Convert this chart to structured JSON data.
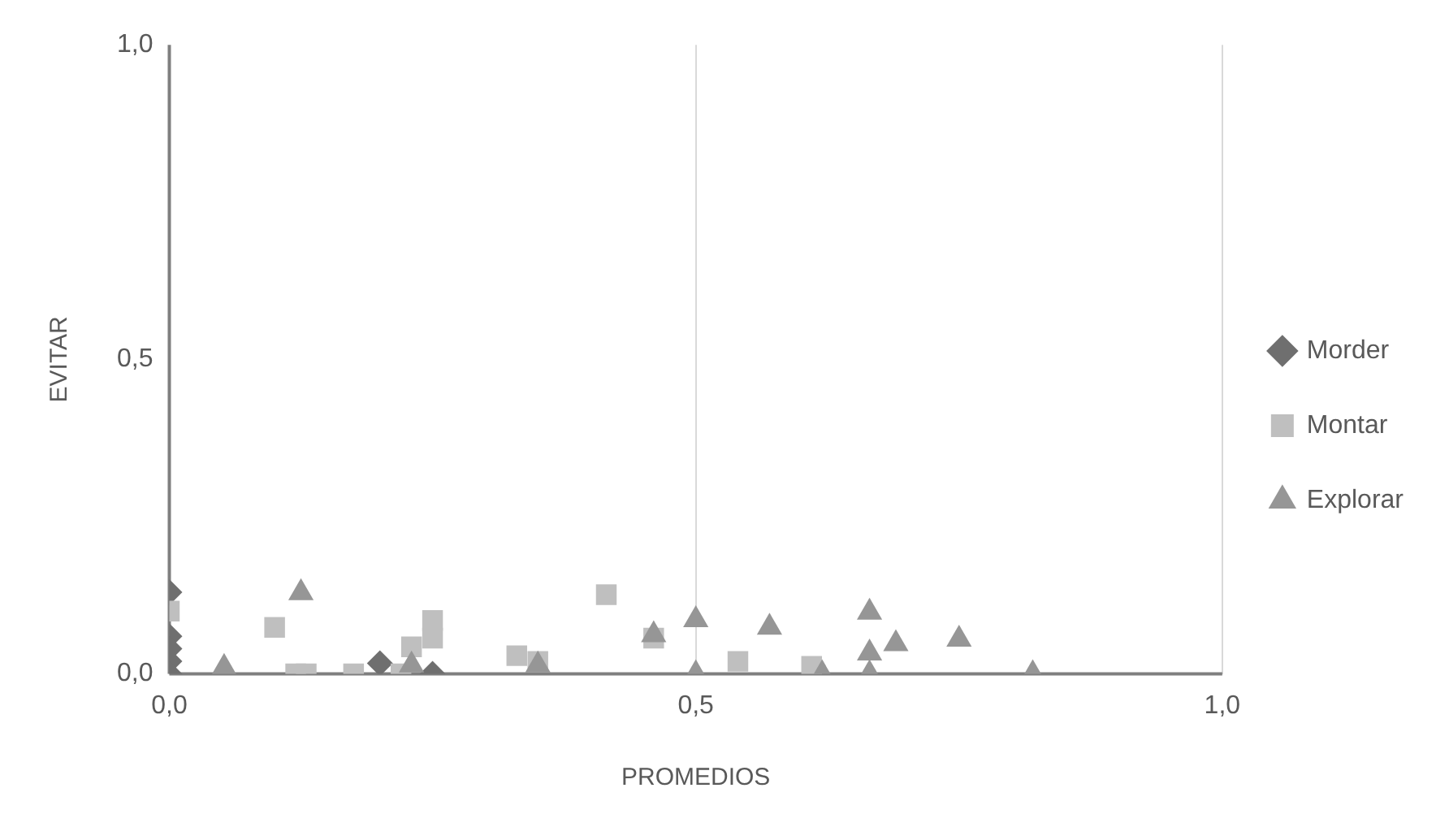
{
  "chart_data": {
    "type": "scatter",
    "xlabel": "PROMEDIOS",
    "ylabel": "EVITAR",
    "xlim": [
      0,
      1
    ],
    "ylim": [
      0,
      1
    ],
    "xticks": [
      {
        "value": 0,
        "label": "0,0"
      },
      {
        "value": 0.5,
        "label": "0,5"
      },
      {
        "value": 1,
        "label": "1,0"
      }
    ],
    "yticks": [
      {
        "value": 0,
        "label": "0,0"
      },
      {
        "value": 0.5,
        "label": "0,5"
      },
      {
        "value": 1,
        "label": "1,0"
      }
    ],
    "grid": "x",
    "legend": "right",
    "series": [
      {
        "name": "Morder",
        "color": "#6f6f6f",
        "marker": "diamond",
        "x": [
          0,
          0,
          0,
          0,
          0,
          0.2,
          0.25
        ],
        "values": [
          0.13,
          0.06,
          0.04,
          0.02,
          0,
          0.017,
          0
        ]
      },
      {
        "name": "Montar",
        "color": "#bfbfbf",
        "marker": "square",
        "x": [
          0,
          0.1,
          0.12,
          0.13,
          0.175,
          0.22,
          0.23,
          0.25,
          0.25,
          0.33,
          0.35,
          0.415,
          0.46,
          0.54,
          0.61
        ],
        "values": [
          0.1,
          0.074,
          0,
          0,
          0,
          0,
          0.043,
          0.085,
          0.057,
          0.029,
          0.02,
          0.126,
          0.057,
          0.02,
          0.012
        ]
      },
      {
        "name": "Explorar",
        "color": "#969696",
        "marker": "triangle",
        "x": [
          0.052,
          0.125,
          0.23,
          0.35,
          0.46,
          0.5,
          0.5,
          0.57,
          0.62,
          0.665,
          0.665,
          0.665,
          0.69,
          0.75,
          0.82
        ],
        "values": [
          0.01,
          0.129,
          0.014,
          0.014,
          0.062,
          0.086,
          0,
          0.074,
          0,
          0.033,
          0.098,
          0,
          0.048,
          0.055,
          0
        ]
      }
    ]
  }
}
